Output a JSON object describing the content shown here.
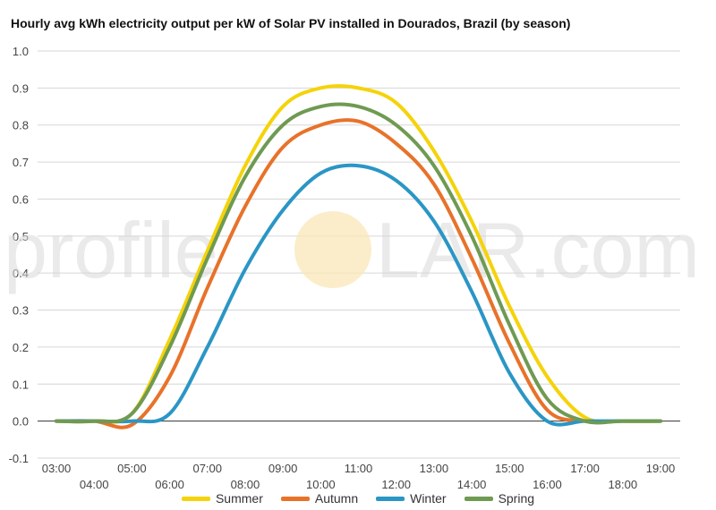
{
  "chart_data": {
    "type": "line",
    "title": "Hourly avg kWh electricity output per kW of Solar PV installed in Dourados, Brazil (by season)",
    "xlabel": "",
    "ylabel": "",
    "x": [
      "03:00",
      "04:00",
      "05:00",
      "06:00",
      "07:00",
      "08:00",
      "09:00",
      "10:00",
      "11:00",
      "12:00",
      "13:00",
      "14:00",
      "15:00",
      "16:00",
      "17:00",
      "18:00",
      "19:00"
    ],
    "ylim": [
      -0.1,
      1.0
    ],
    "yticks": [
      "-0.1",
      "0.0",
      "0.1",
      "0.2",
      "0.3",
      "0.4",
      "0.5",
      "0.6",
      "0.7",
      "0.8",
      "0.9",
      "1.0"
    ],
    "grid": true,
    "legend_position": "bottom",
    "series": [
      {
        "name": "Summer",
        "color": "#f5d30a",
        "values": [
          0.0,
          0.0,
          0.02,
          0.22,
          0.46,
          0.69,
          0.85,
          0.9,
          0.9,
          0.86,
          0.73,
          0.54,
          0.31,
          0.12,
          0.01,
          0.0,
          0.0
        ]
      },
      {
        "name": "Autumn",
        "color": "#e8722a",
        "values": [
          0.0,
          0.0,
          -0.01,
          0.12,
          0.36,
          0.58,
          0.74,
          0.8,
          0.81,
          0.75,
          0.64,
          0.44,
          0.21,
          0.03,
          0.0,
          0.0,
          0.0
        ]
      },
      {
        "name": "Winter",
        "color": "#2a96c5",
        "values": [
          0.0,
          0.0,
          0.0,
          0.02,
          0.2,
          0.41,
          0.57,
          0.67,
          0.69,
          0.65,
          0.54,
          0.35,
          0.13,
          0.0,
          0.0,
          0.0,
          0.0
        ]
      },
      {
        "name": "Spring",
        "color": "#6f9a52",
        "values": [
          0.0,
          0.0,
          0.02,
          0.2,
          0.44,
          0.66,
          0.8,
          0.85,
          0.85,
          0.8,
          0.69,
          0.5,
          0.26,
          0.06,
          0.0,
          0.0,
          0.0
        ]
      }
    ]
  },
  "watermark": {
    "text_left": "profile",
    "text_right": "LAR.com",
    "sun_color": "#f9e7b8"
  }
}
